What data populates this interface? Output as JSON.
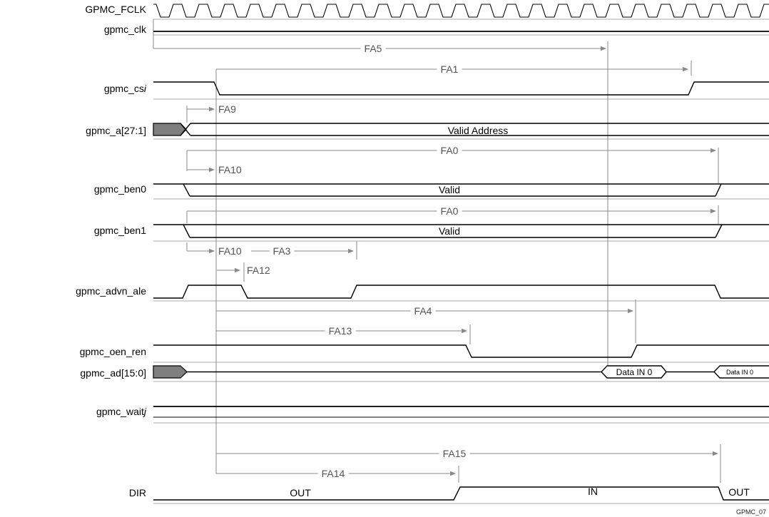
{
  "signals": {
    "fclk": "GPMC_FCLK",
    "clk": "gpmc_clk",
    "cs_base": "gpmc_cs",
    "cs_italic": "i",
    "addr": "gpmc_a[27:1]",
    "ben0": "gpmc_ben0",
    "ben1": "gpmc_ben1",
    "advn_ale": "gpmc_advn_ale",
    "oen_ren": "gpmc_oen_ren",
    "ad": "gpmc_ad[15:0]",
    "wait_base": "gpmc_wait",
    "wait_italic": "j",
    "dir": "DIR"
  },
  "timing": {
    "fa5": "FA5",
    "fa1": "FA1",
    "fa9": "FA9",
    "fa0_ben0": "FA0",
    "fa10_cs": "FA10",
    "fa0_ben1": "FA0",
    "fa10_adv": "FA10",
    "fa3": "FA3",
    "fa12": "FA12",
    "fa4": "FA4",
    "fa13": "FA13",
    "fa15": "FA15",
    "fa14": "FA14"
  },
  "states": {
    "valid_address": "Valid Address",
    "ben0_valid": "Valid",
    "ben1_valid": "Valid",
    "data_in_first": "Data IN 0",
    "data_in_second": "Data IN 0",
    "dir_out_left": "OUT",
    "dir_in": "IN",
    "dir_out_right": "OUT"
  },
  "footer": {
    "figure_code": "GPMC_07"
  },
  "colors": {
    "signal": "#000000",
    "dimension": "#8a8a8a",
    "row_rail": "#a8a8b4",
    "bus_fill": "#7f7f7f"
  }
}
